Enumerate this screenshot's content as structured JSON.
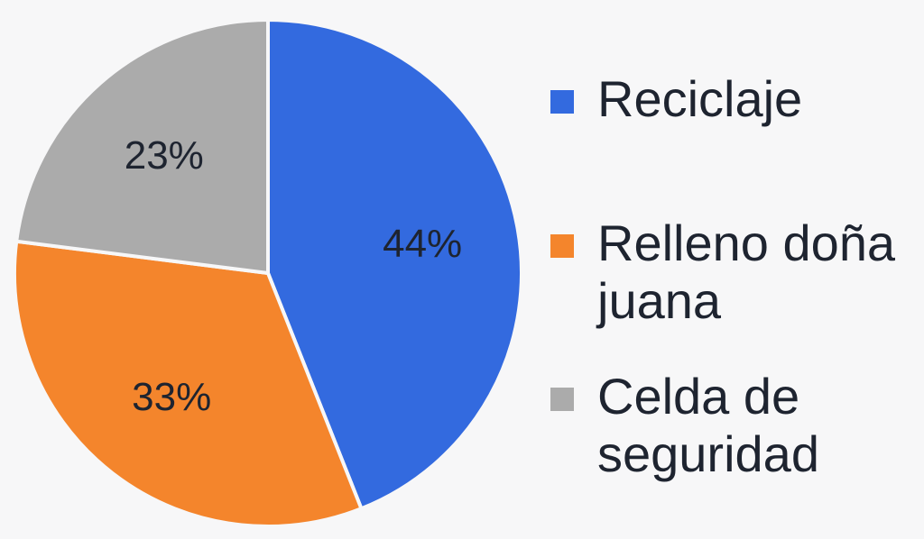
{
  "chart_data": {
    "type": "pie",
    "categories": [
      "Reciclaje",
      "Relleno doña juana",
      "Celda de seguridad"
    ],
    "values": [
      44,
      33,
      23
    ],
    "labels": [
      "44%",
      "33%",
      "23%"
    ],
    "colors": [
      "#336ADF",
      "#F4852C",
      "#ABABAB"
    ],
    "legend_position": "right"
  }
}
